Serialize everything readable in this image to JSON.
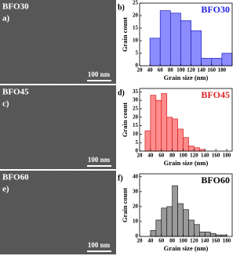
{
  "images": [
    {
      "label": "BFO30",
      "panel": "a)",
      "scale_bar": "100 nm"
    },
    {
      "label": "BFO45",
      "panel": "c)",
      "scale_bar": "100 nm"
    },
    {
      "label": "BFO60",
      "panel": "e)",
      "scale_bar": "100 nm"
    }
  ],
  "chart_data": [
    {
      "type": "histogram",
      "panel": "b)",
      "title": "BFO30",
      "title_color": "#2020e0",
      "xlabel": "Grain size (nm)",
      "ylabel": "Grain count",
      "color": "#8c8cff",
      "edge_color": "#2020c0",
      "bins": [
        40,
        60,
        80,
        100,
        120,
        140,
        160,
        180,
        200
      ],
      "values": [
        11,
        22,
        21,
        18,
        14,
        3,
        3,
        5
      ],
      "xlim": [
        20,
        200
      ],
      "xticks": [
        20,
        40,
        60,
        80,
        100,
        120,
        140,
        160,
        180
      ],
      "ylim": [
        0,
        25
      ],
      "yticks": [
        0,
        5,
        10,
        15,
        20,
        25
      ]
    },
    {
      "type": "histogram",
      "panel": "d)",
      "title": "BFO45",
      "title_color": "#e02020",
      "xlabel": "Grain size (nm)",
      "ylabel": "Grain count",
      "color": "#ff8c8c",
      "edge_color": "#d02020",
      "bins": [
        30,
        40,
        50,
        60,
        70,
        80,
        90,
        100,
        110,
        120,
        130,
        140
      ],
      "values": [
        12,
        33,
        30,
        34,
        20,
        19,
        13,
        8,
        3,
        2,
        1
      ],
      "xlim": [
        20,
        190
      ],
      "xticks": [
        20,
        40,
        60,
        80,
        100,
        120,
        140,
        160,
        180
      ],
      "ylim": [
        0,
        37
      ],
      "yticks": [
        0,
        5,
        10,
        15,
        20,
        25,
        30,
        35
      ]
    },
    {
      "type": "histogram",
      "panel": "f)",
      "title": "BFO60",
      "title_color": "#000000",
      "xlabel": "Grain size (nm)",
      "ylabel": "Grain count",
      "color": "#9a9a9a",
      "edge_color": "#202020",
      "bins": [
        40,
        50,
        60,
        70,
        80,
        90,
        100,
        110,
        120,
        130,
        140,
        150,
        160,
        170,
        180
      ],
      "values": [
        4,
        11,
        19,
        20,
        34,
        22,
        18,
        11,
        8,
        3,
        3,
        2,
        1,
        1
      ],
      "xlim": [
        20,
        190
      ],
      "xticks": [
        20,
        40,
        60,
        80,
        100,
        120,
        140,
        160,
        180
      ],
      "ylim": [
        0,
        42
      ],
      "yticks": [
        0,
        10,
        20,
        30,
        40
      ]
    }
  ]
}
